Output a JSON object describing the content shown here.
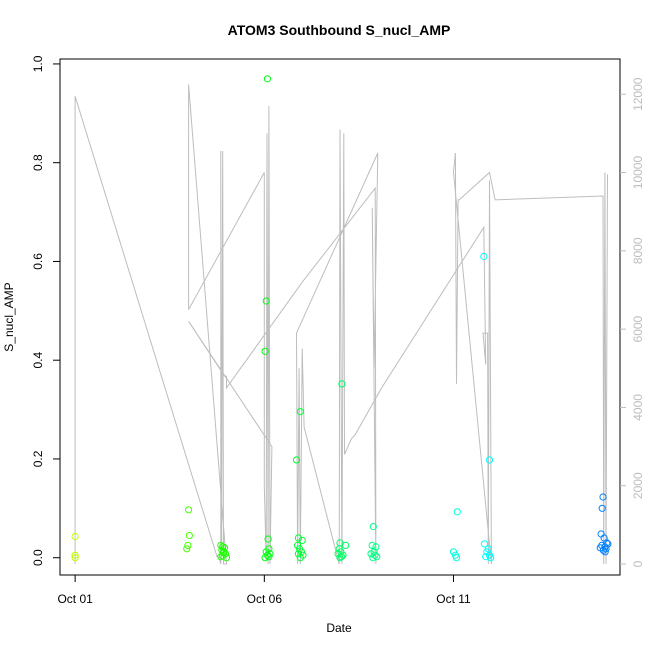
{
  "chart_data": {
    "type": "scatter",
    "title": "ATOM3 Southbound S_nucl_AMP",
    "xlabel": "Date",
    "ylabel": "S_nucl_AMP",
    "x_ticks": [
      {
        "label": "Oct 01",
        "day": 1
      },
      {
        "label": "Oct 06",
        "day": 6
      },
      {
        "label": "Oct 11",
        "day": 11
      }
    ],
    "xlim": [
      0.6,
      15.4
    ],
    "ylim": [
      -0.035,
      1.01
    ],
    "y_ticks": [
      "0.0",
      "0.2",
      "0.4",
      "0.6",
      "0.8",
      "1.0"
    ],
    "y2lim": [
      -280,
      12900
    ],
    "y2_ticks": [
      "0",
      "2000",
      "4000",
      "6000",
      "8000",
      "10000",
      "12000"
    ],
    "grid": false,
    "legend": "none",
    "line_color": "#bdbdbd",
    "points": [
      [
        1.0,
        0.043
      ],
      [
        1.0,
        0.005
      ],
      [
        1.0,
        0.0
      ],
      [
        4.0,
        0.097
      ],
      [
        4.02,
        0.045
      ],
      [
        3.98,
        0.025
      ],
      [
        3.95,
        0.018
      ],
      [
        4.85,
        0.025
      ],
      [
        4.9,
        0.022
      ],
      [
        4.95,
        0.02
      ],
      [
        4.88,
        0.015
      ],
      [
        4.92,
        0.01
      ],
      [
        4.97,
        0.008
      ],
      [
        4.9,
        0.004
      ],
      [
        4.85,
        0.002
      ],
      [
        5.0,
        0.0
      ],
      [
        4.93,
        0.012
      ],
      [
        6.08,
        0.97
      ],
      [
        6.05,
        0.52
      ],
      [
        6.02,
        0.418
      ],
      [
        6.1,
        0.038
      ],
      [
        6.12,
        0.018
      ],
      [
        6.05,
        0.012
      ],
      [
        6.15,
        0.008
      ],
      [
        6.08,
        0.005
      ],
      [
        6.02,
        0.0
      ],
      [
        6.12,
        0.002
      ],
      [
        6.85,
        0.198
      ],
      [
        6.95,
        0.296
      ],
      [
        6.9,
        0.04
      ],
      [
        7.0,
        0.035
      ],
      [
        6.88,
        0.025
      ],
      [
        6.93,
        0.018
      ],
      [
        6.98,
        0.012
      ],
      [
        6.9,
        0.008
      ],
      [
        7.02,
        0.005
      ],
      [
        6.95,
        0.0
      ],
      [
        8.05,
        0.352
      ],
      [
        8.0,
        0.03
      ],
      [
        8.15,
        0.025
      ],
      [
        7.98,
        0.018
      ],
      [
        8.02,
        0.012
      ],
      [
        7.95,
        0.008
      ],
      [
        8.08,
        0.005
      ],
      [
        8.0,
        0.0
      ],
      [
        8.04,
        0.002
      ],
      [
        8.88,
        0.063
      ],
      [
        8.85,
        0.025
      ],
      [
        8.95,
        0.022
      ],
      [
        8.9,
        0.012
      ],
      [
        8.82,
        0.008
      ],
      [
        8.92,
        0.005
      ],
      [
        8.87,
        0.0
      ],
      [
        8.97,
        0.002
      ],
      [
        11.1,
        0.093
      ],
      [
        11.0,
        0.012
      ],
      [
        11.05,
        0.005
      ],
      [
        11.08,
        0.0
      ],
      [
        11.8,
        0.61
      ],
      [
        11.95,
        0.198
      ],
      [
        11.82,
        0.028
      ],
      [
        11.92,
        0.018
      ],
      [
        11.88,
        0.012
      ],
      [
        11.95,
        0.005
      ],
      [
        11.85,
        0.002
      ],
      [
        11.98,
        0.0
      ],
      [
        14.95,
        0.123
      ],
      [
        14.93,
        0.1
      ],
      [
        14.9,
        0.048
      ],
      [
        14.98,
        0.04
      ],
      [
        15.05,
        0.03
      ],
      [
        15.08,
        0.028
      ],
      [
        14.92,
        0.025
      ],
      [
        15.0,
        0.022
      ],
      [
        14.88,
        0.02
      ],
      [
        15.03,
        0.018
      ],
      [
        14.96,
        0.015
      ],
      [
        15.01,
        0.012
      ]
    ],
    "line_series": [
      [
        1.0,
        0
      ],
      [
        1.0,
        11950
      ],
      [
        4.75,
        190
      ],
      [
        4.8,
        180
      ],
      [
        4.85,
        0
      ],
      [
        4.85,
        10550
      ],
      [
        4.87,
        180
      ],
      [
        4.9,
        10550
      ],
      [
        4.92,
        0
      ],
      [
        5.0,
        0
      ],
      [
        4.0,
        12250
      ],
      [
        4.0,
        6500
      ],
      [
        6.0,
        10000
      ],
      [
        6.0,
        2000
      ],
      [
        6.05,
        100
      ],
      [
        6.07,
        11000
      ],
      [
        6.1,
        0
      ],
      [
        6.12,
        11700
      ],
      [
        6.15,
        0
      ],
      [
        6.2,
        3000
      ],
      [
        4.0,
        6200
      ],
      [
        4.95,
        4800
      ],
      [
        5.0,
        4800
      ],
      [
        5.0,
        4500
      ],
      [
        7.0,
        7200
      ],
      [
        8.93,
        9600
      ],
      [
        8.95,
        0
      ],
      [
        8.85,
        9100
      ],
      [
        8.9,
        5000
      ],
      [
        9.0,
        10500
      ],
      [
        6.85,
        5900
      ],
      [
        6.88,
        0
      ],
      [
        6.92,
        5000
      ],
      [
        6.95,
        0
      ],
      [
        7.0,
        5500
      ],
      [
        7.05,
        3500
      ],
      [
        7.98,
        0
      ],
      [
        8.0,
        11100
      ],
      [
        8.05,
        0
      ],
      [
        8.1,
        11000
      ],
      [
        8.12,
        2800
      ],
      [
        8.3,
        3200
      ],
      [
        8.4,
        3300
      ],
      [
        9.1,
        4500
      ],
      [
        11.8,
        8600
      ],
      [
        11.85,
        5100
      ],
      [
        11.78,
        5900
      ],
      [
        11.9,
        5900
      ],
      [
        11.92,
        0
      ],
      [
        11.95,
        9800
      ],
      [
        12.0,
        0
      ],
      [
        11.0,
        10000
      ],
      [
        11.05,
        10500
      ],
      [
        11.08,
        4600
      ],
      [
        11.12,
        9300
      ],
      [
        11.15,
        9300
      ],
      [
        11.95,
        10000
      ],
      [
        12.1,
        9300
      ],
      [
        14.95,
        9400
      ],
      [
        14.97,
        0
      ],
      [
        15.0,
        10000
      ],
      [
        15.03,
        0
      ],
      [
        15.07,
        9950
      ]
    ]
  }
}
